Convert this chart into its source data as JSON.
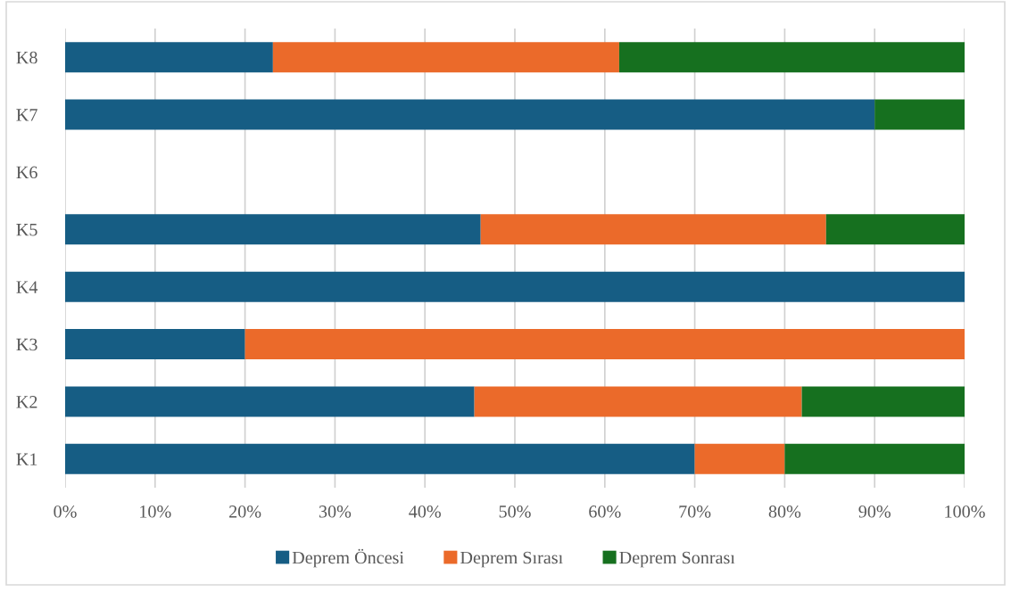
{
  "chart_data": {
    "type": "bar",
    "orientation": "horizontal",
    "stacked": true,
    "categories": [
      "K8",
      "K7",
      "K6",
      "K5",
      "K4",
      "K3",
      "K2",
      "K1"
    ],
    "series": [
      {
        "name": "Deprem Öncesi",
        "color": "#165d84",
        "values": [
          23.1,
          90,
          0,
          46.2,
          100,
          20,
          45.5,
          70
        ]
      },
      {
        "name": "Deprem Sırası",
        "color": "#eb6a2a",
        "values": [
          38.5,
          0,
          0,
          38.4,
          0,
          80,
          36.4,
          10
        ]
      },
      {
        "name": "Deprem Sonrası",
        "color": "#16701f",
        "values": [
          38.4,
          10,
          0,
          15.4,
          0,
          0,
          18.1,
          20
        ]
      }
    ],
    "xlim": [
      0,
      100
    ],
    "xticks": [
      {
        "value": 0,
        "label": "0%"
      },
      {
        "value": 10,
        "label": "10%"
      },
      {
        "value": 20,
        "label": "20%"
      },
      {
        "value": 30,
        "label": "30%"
      },
      {
        "value": 40,
        "label": "40%"
      },
      {
        "value": 50,
        "label": "50%"
      },
      {
        "value": 60,
        "label": "60%"
      },
      {
        "value": 70,
        "label": "70%"
      },
      {
        "value": 80,
        "label": "80%"
      },
      {
        "value": 90,
        "label": "90%"
      },
      {
        "value": 100,
        "label": "100%"
      }
    ],
    "grid": "x",
    "legend": "bottom"
  }
}
